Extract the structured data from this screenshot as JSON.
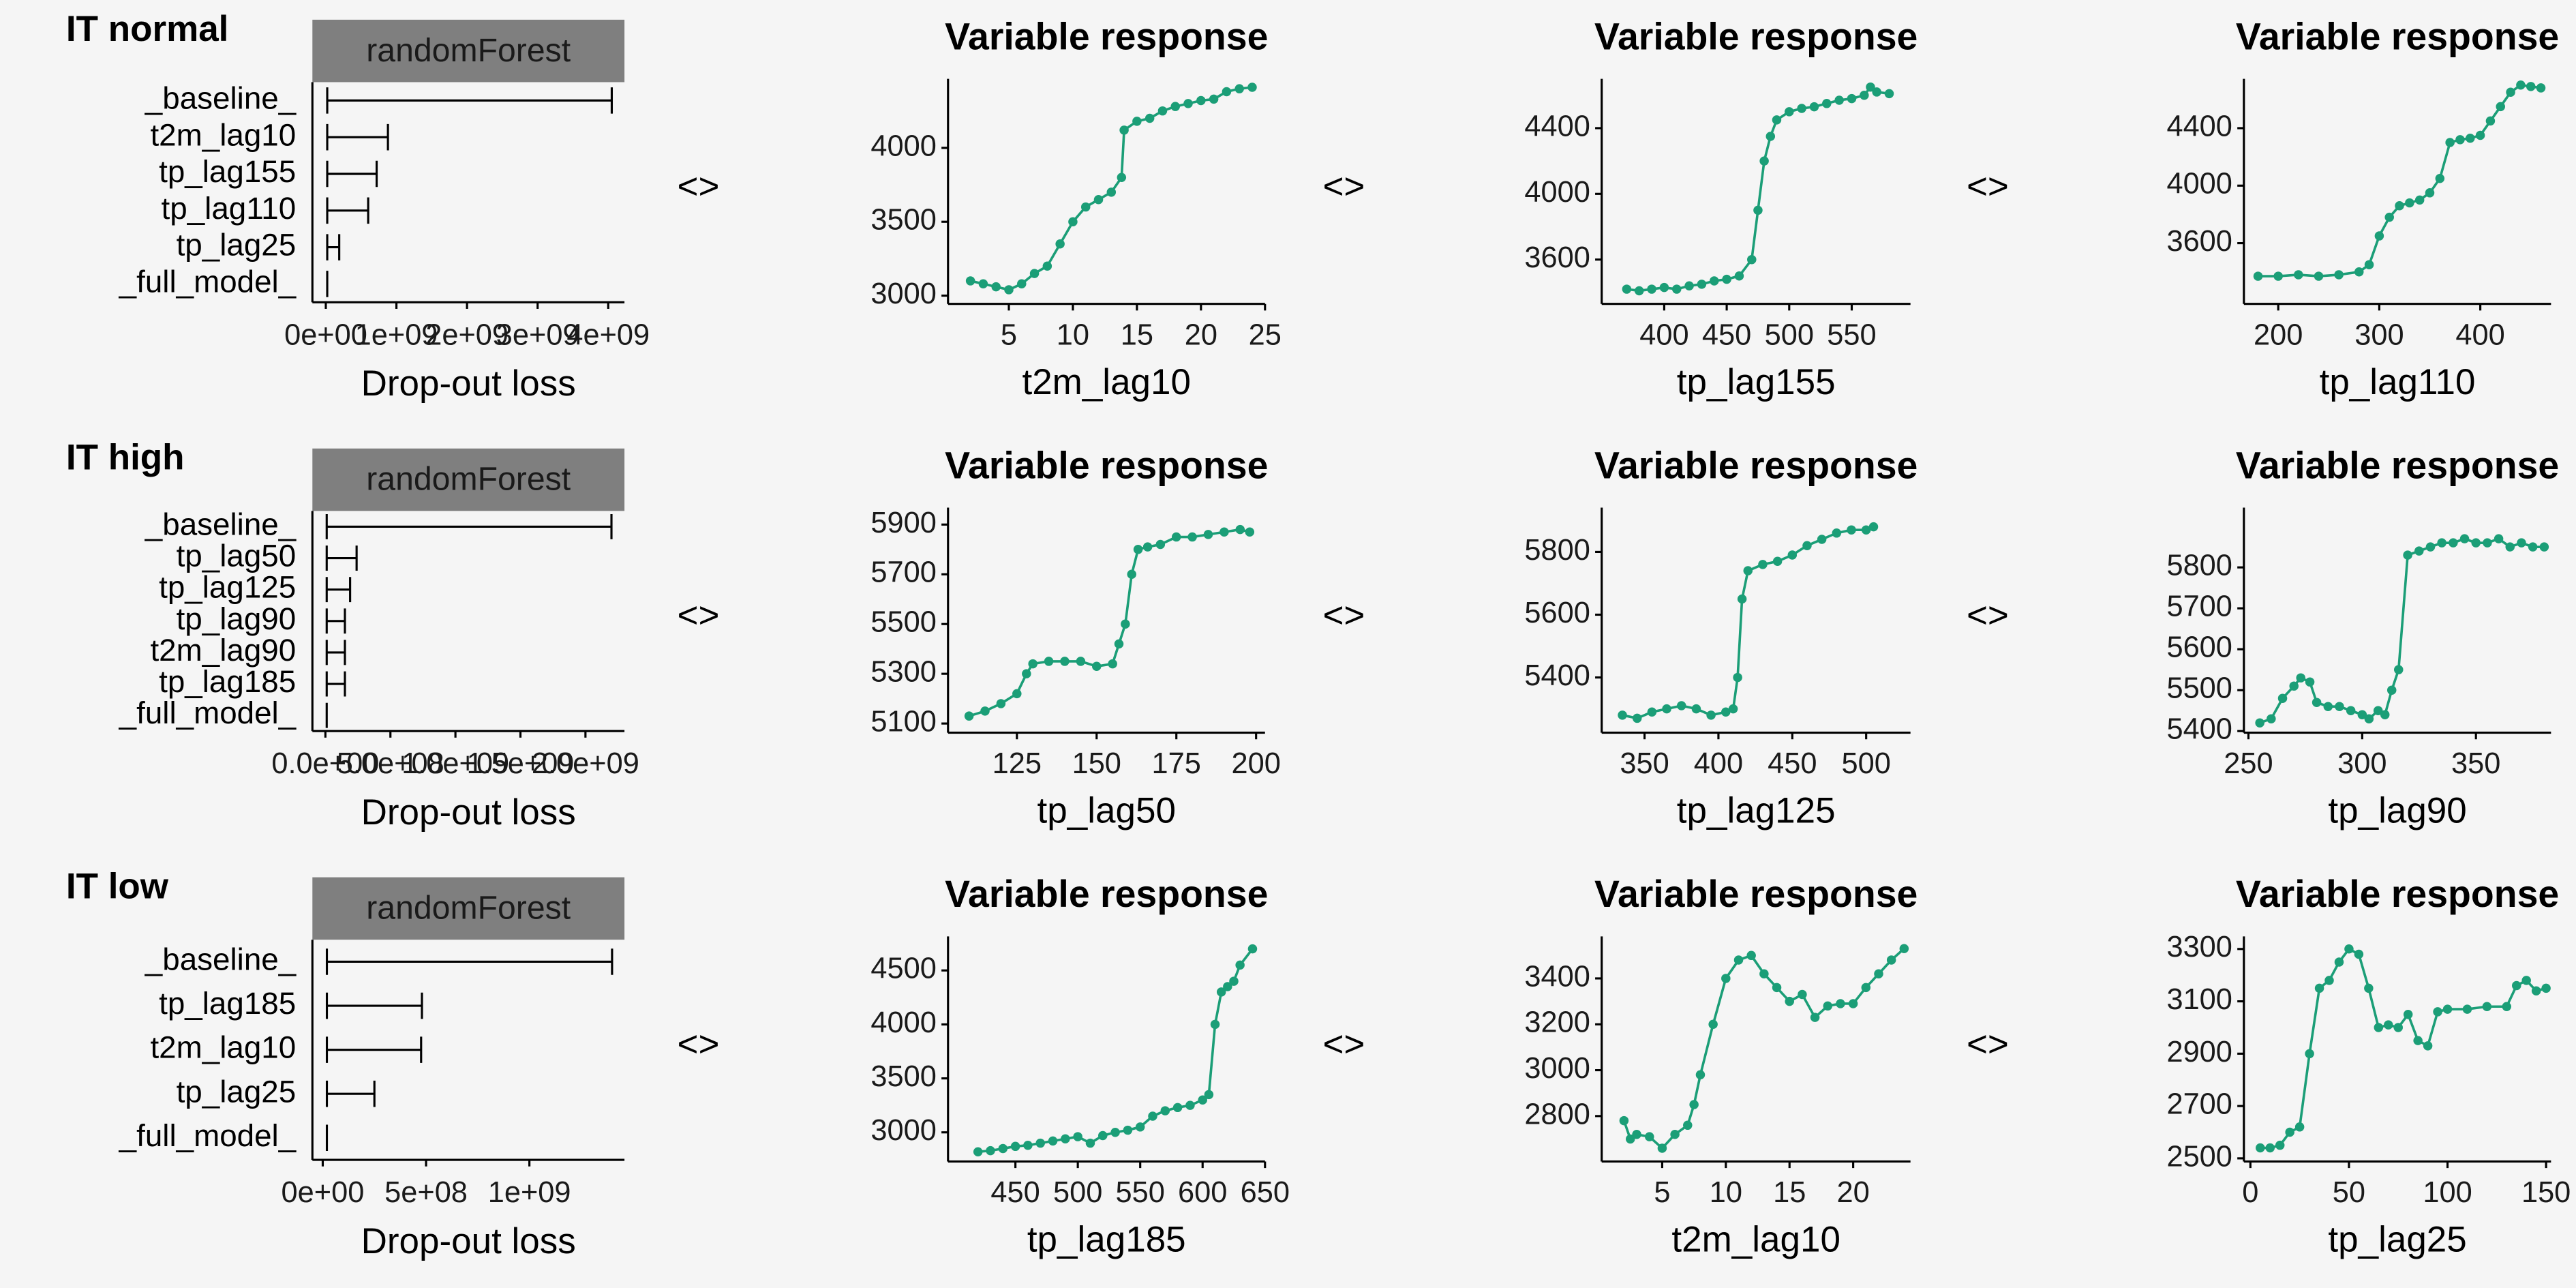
{
  "separator": "<>",
  "chart_data": [
    {
      "type": "bar",
      "title": "IT normal",
      "strip": "randomForest",
      "strip_color": "#7f7f7f",
      "color": "#000000",
      "xlabel": "Drop-out loss",
      "categories": [
        "_baseline_",
        "t2m_lag10",
        "tp_lag155",
        "tp_lag110",
        "tp_lag25",
        "_full_model_"
      ],
      "values": [
        4050000000,
        880000000,
        720000000,
        600000000,
        190000000,
        20000000
      ],
      "xlim": [
        -190000000,
        4230000000
      ],
      "xticks": [
        {
          "value": 0,
          "label": "0e+00"
        },
        {
          "value": 1000000000,
          "label": "1e+09"
        },
        {
          "value": 2000000000,
          "label": "2e+09"
        },
        {
          "value": 3000000000,
          "label": "3e+09"
        },
        {
          "value": 4000000000,
          "label": "4e+09"
        }
      ]
    },
    {
      "type": "line",
      "title": "Variable response",
      "xlabel": "t2m_lag10",
      "color": "#1b9e77",
      "x": [
        2,
        3,
        4,
        5,
        6,
        7,
        8,
        9,
        10,
        11,
        12,
        13,
        13.8,
        14,
        15,
        16,
        17,
        18,
        19,
        20,
        21,
        22,
        23,
        24
      ],
      "values": [
        3100,
        3080,
        3060,
        3040,
        3080,
        3150,
        3200,
        3350,
        3500,
        3600,
        3650,
        3700,
        3800,
        4120,
        4180,
        4200,
        4250,
        4280,
        4300,
        4320,
        4330,
        4380,
        4400,
        4410
      ],
      "xlim": [
        0.25,
        25
      ],
      "xticks": [
        5,
        10,
        15,
        20,
        25
      ],
      "ylim": [
        2944,
        4467
      ],
      "yticks": [
        3000,
        3500,
        4000
      ]
    },
    {
      "type": "line",
      "title": "Variable response",
      "xlabel": "tp_lag155",
      "color": "#1b9e77",
      "x": [
        370,
        380,
        390,
        400,
        410,
        420,
        430,
        440,
        450,
        460,
        470,
        475,
        480,
        485,
        490,
        500,
        510,
        520,
        530,
        540,
        550,
        560,
        565,
        570,
        580
      ],
      "values": [
        3420,
        3410,
        3420,
        3430,
        3420,
        3440,
        3450,
        3470,
        3480,
        3500,
        3600,
        3900,
        4200,
        4350,
        4450,
        4500,
        4520,
        4530,
        4550,
        4570,
        4580,
        4600,
        4650,
        4620,
        4610
      ],
      "xlim": [
        350,
        597
      ],
      "xticks": [
        400,
        450,
        500,
        550
      ],
      "ylim": [
        3330,
        4700
      ],
      "yticks": [
        3600,
        4000,
        4400
      ]
    },
    {
      "type": "line",
      "title": "Variable response",
      "xlabel": "tp_lag110",
      "color": "#1b9e77",
      "x": [
        180,
        200,
        220,
        240,
        260,
        280,
        290,
        300,
        310,
        320,
        330,
        340,
        350,
        360,
        370,
        380,
        390,
        400,
        410,
        420,
        430,
        440,
        450,
        460
      ],
      "values": [
        3370,
        3370,
        3380,
        3370,
        3380,
        3400,
        3450,
        3650,
        3780,
        3860,
        3880,
        3900,
        3950,
        4050,
        4300,
        4320,
        4330,
        4350,
        4450,
        4550,
        4650,
        4700,
        4690,
        4680
      ],
      "xlim": [
        166,
        470
      ],
      "xticks": [
        200,
        300,
        400
      ],
      "ylim": [
        3177,
        4743
      ],
      "yticks": [
        3600,
        4000,
        4400
      ]
    },
    {
      "type": "bar",
      "title": "IT high",
      "strip": "randomForest",
      "strip_color": "#7f7f7f",
      "color": "#000000",
      "xlabel": "Drop-out loss",
      "categories": [
        "_baseline_",
        "tp_lag50",
        "tp_lag125",
        "tp_lag90",
        "t2m_lag90",
        "tp_lag185",
        "_full_model_"
      ],
      "values": [
        2200000000,
        240000000,
        190000000,
        150000000,
        150000000,
        150000000,
        10000000
      ],
      "xlim": [
        -100000000,
        2300000000
      ],
      "xticks": [
        {
          "value": 0,
          "label": "0.0e+00"
        },
        {
          "value": 500000000,
          "label": "5.0e+08"
        },
        {
          "value": 1000000000,
          "label": "1.0e+09"
        },
        {
          "value": 1500000000,
          "label": "1.5e+09"
        },
        {
          "value": 2000000000,
          "label": "2.0e+09"
        }
      ]
    },
    {
      "type": "line",
      "title": "Variable response",
      "xlabel": "tp_lag50",
      "color": "#1b9e77",
      "x": [
        110,
        115,
        120,
        125,
        128,
        130,
        135,
        140,
        145,
        150,
        155,
        157,
        159,
        161,
        163,
        166,
        170,
        175,
        180,
        185,
        190,
        195,
        198
      ],
      "values": [
        5130,
        5150,
        5180,
        5220,
        5300,
        5340,
        5350,
        5350,
        5350,
        5330,
        5340,
        5420,
        5500,
        5700,
        5800,
        5810,
        5820,
        5850,
        5850,
        5860,
        5870,
        5880,
        5870
      ],
      "xlim": [
        103.4,
        202.8
      ],
      "xticks": [
        125,
        150,
        175,
        200
      ],
      "ylim": [
        5063,
        5968
      ],
      "yticks": [
        5100,
        5300,
        5500,
        5700,
        5900
      ]
    },
    {
      "type": "line",
      "title": "Variable response",
      "xlabel": "tp_lag125",
      "color": "#1b9e77",
      "x": [
        335,
        345,
        355,
        365,
        375,
        385,
        395,
        405,
        410,
        413,
        416,
        420,
        430,
        440,
        450,
        460,
        470,
        480,
        490,
        500,
        505
      ],
      "values": [
        5280,
        5270,
        5290,
        5300,
        5310,
        5300,
        5280,
        5290,
        5300,
        5400,
        5650,
        5740,
        5760,
        5770,
        5790,
        5820,
        5840,
        5860,
        5870,
        5870,
        5880
      ],
      "xlim": [
        321,
        530
      ],
      "xticks": [
        350,
        400,
        450,
        500
      ],
      "ylim": [
        5224,
        5941
      ],
      "yticks": [
        5400,
        5600,
        5800
      ]
    },
    {
      "type": "line",
      "title": "Variable response",
      "xlabel": "tp_lag90",
      "color": "#1b9e77",
      "x": [
        255,
        260,
        265,
        270,
        273,
        277,
        280,
        285,
        290,
        295,
        300,
        303,
        307,
        310,
        313,
        316,
        320,
        325,
        330,
        335,
        340,
        345,
        350,
        355,
        360,
        365,
        370,
        375,
        380
      ],
      "values": [
        5420,
        5430,
        5480,
        5510,
        5530,
        5520,
        5470,
        5460,
        5460,
        5450,
        5440,
        5430,
        5450,
        5440,
        5500,
        5550,
        5830,
        5840,
        5850,
        5860,
        5860,
        5870,
        5860,
        5860,
        5870,
        5850,
        5860,
        5850,
        5850
      ],
      "xlim": [
        248,
        383
      ],
      "xticks": [
        250,
        300,
        350
      ],
      "ylim": [
        5396,
        5946
      ],
      "yticks": [
        5400,
        5500,
        5600,
        5700,
        5800
      ]
    },
    {
      "type": "bar",
      "title": "IT low",
      "strip": "randomForest",
      "strip_color": "#7f7f7f",
      "color": "#000000",
      "xlabel": "Drop-out loss",
      "categories": [
        "_baseline_",
        "tp_lag185",
        "t2m_lag10",
        "tp_lag25",
        "_full_model_"
      ],
      "values": [
        1400000000,
        480000000,
        476000000,
        250000000,
        20000000
      ],
      "xlim": [
        -50000000,
        1460000000
      ],
      "xticks": [
        {
          "value": 0,
          "label": "0e+00"
        },
        {
          "value": 500000000,
          "label": "5e+08"
        },
        {
          "value": 1000000000,
          "label": "1e+09"
        }
      ]
    },
    {
      "type": "line",
      "title": "Variable response",
      "xlabel": "tp_lag185",
      "color": "#1b9e77",
      "x": [
        420,
        430,
        440,
        450,
        460,
        470,
        480,
        490,
        500,
        510,
        520,
        530,
        540,
        550,
        560,
        570,
        580,
        590,
        600,
        605,
        610,
        615,
        620,
        625,
        630,
        640
      ],
      "values": [
        2820,
        2830,
        2850,
        2870,
        2880,
        2900,
        2920,
        2940,
        2960,
        2900,
        2970,
        3000,
        3020,
        3050,
        3150,
        3200,
        3230,
        3250,
        3300,
        3350,
        4000,
        4300,
        4350,
        4400,
        4550,
        4700
      ],
      "xlim": [
        396,
        650
      ],
      "xticks": [
        450,
        500,
        550,
        600,
        650
      ],
      "ylim": [
        2730,
        4815
      ],
      "yticks": [
        3000,
        3500,
        4000,
        4500
      ]
    },
    {
      "type": "line",
      "title": "Variable response",
      "xlabel": "t2m_lag10",
      "color": "#1b9e77",
      "x": [
        2,
        2.5,
        3,
        4,
        5,
        6,
        7,
        7.5,
        8,
        9,
        10,
        11,
        12,
        13,
        14,
        15,
        16,
        17,
        18,
        19,
        20,
        21,
        22,
        23,
        24
      ],
      "values": [
        2780,
        2700,
        2720,
        2710,
        2660,
        2720,
        2760,
        2850,
        2980,
        3200,
        3400,
        3480,
        3500,
        3420,
        3360,
        3300,
        3330,
        3230,
        3280,
        3290,
        3290,
        3360,
        3420,
        3480,
        3530
      ],
      "xlim": [
        0.25,
        24.5
      ],
      "xticks": [
        5,
        10,
        15,
        20
      ],
      "ylim": [
        2602,
        3583
      ],
      "yticks": [
        2800,
        3000,
        3200,
        3400
      ]
    },
    {
      "type": "line",
      "title": "Variable response",
      "xlabel": "tp_lag25",
      "color": "#1b9e77",
      "x": [
        5,
        10,
        15,
        20,
        25,
        30,
        35,
        40,
        45,
        50,
        55,
        60,
        65,
        70,
        75,
        80,
        85,
        90,
        95,
        100,
        110,
        120,
        130,
        135,
        140,
        145,
        150
      ],
      "values": [
        2540,
        2540,
        2550,
        2600,
        2620,
        2900,
        3150,
        3180,
        3250,
        3300,
        3280,
        3150,
        3000,
        3010,
        3000,
        3050,
        2950,
        2930,
        3060,
        3070,
        3070,
        3080,
        3080,
        3160,
        3180,
        3140,
        3150
      ],
      "xlim": [
        -3.3,
        152.5
      ],
      "xticks": [
        0,
        50,
        100,
        150
      ],
      "ylim": [
        2488,
        3348
      ],
      "yticks": [
        2500,
        2700,
        2900,
        3100,
        3300
      ]
    }
  ]
}
